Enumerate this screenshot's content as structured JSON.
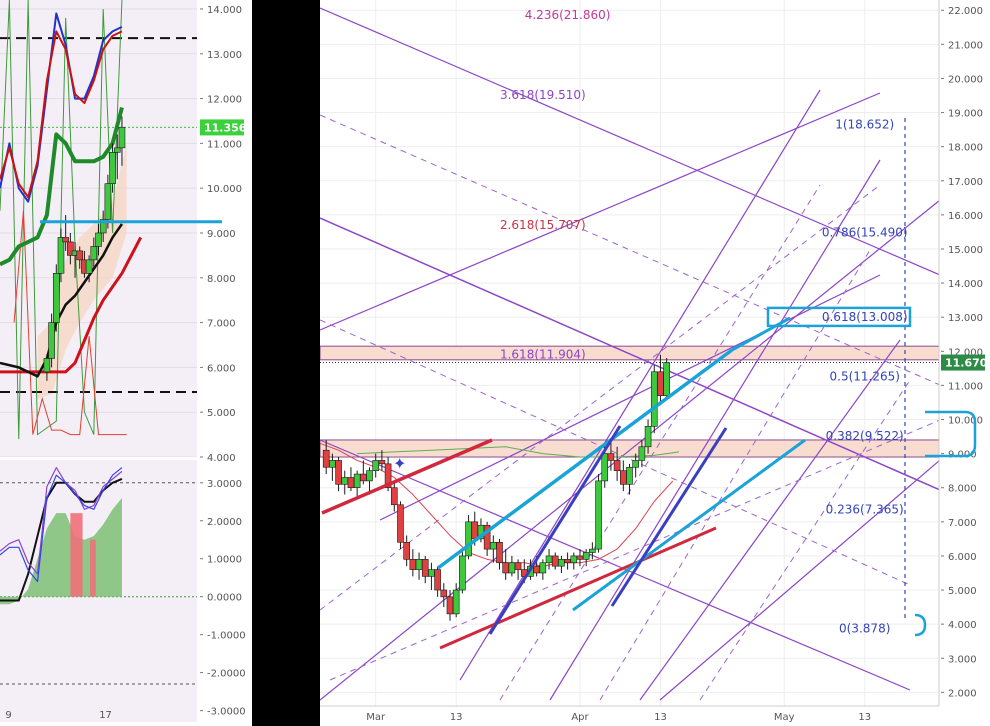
{
  "chart_data": [
    {
      "type": "line",
      "panel": "left-price",
      "ylim": [
        4.0,
        14.2
      ],
      "xlim": [
        0,
        21
      ],
      "y_ticks": [
        14.0,
        13.0,
        12.0,
        11.0,
        10.0,
        9.0,
        8.0,
        7.0,
        6.0,
        5.0,
        4.0
      ],
      "y_tick_labels": [
        "14.000",
        "13.000",
        "12.000",
        "11.000",
        "10.000",
        "9.000",
        "8.000",
        "7.000",
        "6.000",
        "5.000",
        "4.000"
      ],
      "x_ticks": [
        {
          "x": 1,
          "label": "9"
        },
        {
          "x": 11,
          "label": "17"
        }
      ],
      "last_price": 11.356,
      "last_price_label": "11.356",
      "dashed_levels": [
        13.35,
        5.45
      ],
      "cyan_level": 9.25,
      "candles": [
        {
          "x": 5.0,
          "o": 5.9,
          "h": 6.3,
          "l": 5.7,
          "c": 6.2
        },
        {
          "x": 5.5,
          "o": 6.2,
          "h": 7.2,
          "l": 6.0,
          "c": 7.0
        },
        {
          "x": 6.0,
          "o": 7.0,
          "h": 8.3,
          "l": 6.8,
          "c": 8.1
        },
        {
          "x": 6.5,
          "o": 8.1,
          "h": 9.1,
          "l": 7.9,
          "c": 8.9
        },
        {
          "x": 7.0,
          "o": 8.9,
          "h": 9.4,
          "l": 8.6,
          "c": 8.8
        },
        {
          "x": 7.5,
          "o": 8.8,
          "h": 9.0,
          "l": 8.3,
          "c": 8.5
        },
        {
          "x": 8.0,
          "o": 8.5,
          "h": 8.8,
          "l": 8.0,
          "c": 8.6
        },
        {
          "x": 8.5,
          "o": 8.6,
          "h": 8.7,
          "l": 8.2,
          "c": 8.4
        },
        {
          "x": 9.0,
          "o": 8.4,
          "h": 8.6,
          "l": 8.0,
          "c": 8.1
        },
        {
          "x": 9.5,
          "o": 8.1,
          "h": 8.5,
          "l": 7.9,
          "c": 8.4
        },
        {
          "x": 10.0,
          "o": 8.4,
          "h": 8.9,
          "l": 8.2,
          "c": 8.7
        },
        {
          "x": 10.5,
          "o": 8.7,
          "h": 9.2,
          "l": 8.5,
          "c": 9.0
        },
        {
          "x": 11.0,
          "o": 9.0,
          "h": 9.5,
          "l": 8.8,
          "c": 9.3
        },
        {
          "x": 11.5,
          "o": 9.3,
          "h": 10.3,
          "l": 9.1,
          "c": 10.1
        },
        {
          "x": 12.0,
          "o": 10.1,
          "h": 11.0,
          "l": 9.9,
          "c": 10.8
        },
        {
          "x": 12.5,
          "o": 10.8,
          "h": 11.2,
          "l": 10.2,
          "c": 10.9
        },
        {
          "x": 13.0,
          "o": 10.9,
          "h": 11.6,
          "l": 10.5,
          "c": 11.36
        }
      ],
      "series": [
        {
          "color": "#d0101a",
          "width": 3,
          "x": [
            0,
            1,
            2,
            3,
            4,
            5,
            6,
            7,
            8,
            9,
            10,
            11,
            12,
            13,
            14,
            15
          ],
          "y": [
            5.9,
            5.9,
            5.9,
            5.9,
            5.9,
            5.9,
            5.9,
            5.9,
            6.1,
            6.6,
            7.1,
            7.5,
            7.8,
            8.1,
            8.5,
            8.9
          ]
        },
        {
          "color": "#111111",
          "width": 2.5,
          "x": [
            0,
            2,
            4,
            5,
            6,
            7,
            8,
            9,
            10,
            11,
            12,
            13
          ],
          "y": [
            6.1,
            6.0,
            5.8,
            6.2,
            7.0,
            7.4,
            7.6,
            7.9,
            8.2,
            8.5,
            8.9,
            9.2
          ]
        },
        {
          "color": "#1e8a2a",
          "width": 4,
          "x": [
            0,
            1,
            2,
            3,
            4,
            5,
            6,
            7,
            8,
            9,
            10,
            11,
            12,
            13
          ],
          "y": [
            8.3,
            8.4,
            8.7,
            8.8,
            8.9,
            9.4,
            11.2,
            11.0,
            10.6,
            10.6,
            10.6,
            10.7,
            11.0,
            11.8
          ]
        },
        {
          "color": "#2233cc",
          "width": 2,
          "x": [
            0,
            1,
            2,
            3,
            4,
            5,
            6,
            7,
            8,
            9,
            10,
            11,
            12,
            13
          ],
          "y": [
            10.0,
            11.0,
            10.0,
            9.7,
            10.5,
            12.2,
            13.9,
            13.2,
            12.0,
            12.0,
            12.5,
            13.3,
            13.5,
            13.6
          ]
        },
        {
          "color": "#cc1111",
          "width": 2,
          "x": [
            0,
            1,
            2,
            3,
            4,
            5,
            6,
            7,
            8,
            9,
            10,
            11,
            12,
            13
          ],
          "y": [
            10.2,
            10.9,
            10.1,
            9.8,
            10.6,
            12.4,
            13.5,
            13.1,
            12.1,
            11.9,
            12.4,
            13.1,
            13.4,
            13.5
          ]
        }
      ]
    },
    {
      "type": "area",
      "panel": "left-oscillator",
      "ylim": [
        -3.3,
        3.6
      ],
      "y_ticks": [
        3.0,
        2.0,
        1.0,
        0.0,
        -1.0,
        -2.0,
        -3.0
      ],
      "y_tick_labels": [
        "3.0000",
        "2.0000",
        "1.0000",
        "0.0000",
        "-1.0000",
        "-2.0000",
        "-3.0000"
      ],
      "dashed_levels": [
        3.0,
        -2.3
      ],
      "area_x": [
        0,
        1,
        2,
        3,
        4,
        5,
        6,
        7,
        8,
        9,
        10,
        11,
        12,
        13
      ],
      "area_y": [
        -0.2,
        -0.2,
        -0.1,
        0.2,
        1.0,
        1.8,
        2.2,
        2.2,
        1.6,
        1.5,
        1.6,
        1.9,
        2.3,
        2.6
      ],
      "red_bars": [
        {
          "x0": 7.5,
          "x1": 8.8,
          "y": 2.2
        },
        {
          "x0": 9.6,
          "x1": 10.2,
          "y": 1.5
        }
      ],
      "series": [
        {
          "color": "#111111",
          "width": 2,
          "x": [
            0,
            2,
            3,
            4,
            5,
            6,
            7,
            8,
            9,
            10,
            11,
            12,
            13
          ],
          "y": [
            -0.1,
            -0.1,
            0.6,
            1.6,
            2.6,
            3.0,
            3.0,
            2.7,
            2.5,
            2.5,
            2.8,
            3.0,
            3.1
          ]
        },
        {
          "color": "#8d45c8",
          "width": 1.2,
          "x": [
            0,
            1,
            2,
            3,
            4,
            5,
            6,
            7,
            8,
            9,
            10,
            11,
            12,
            13
          ],
          "y": [
            1.2,
            1.4,
            1.5,
            0.9,
            0.6,
            2.9,
            3.4,
            3.0,
            2.8,
            2.3,
            2.4,
            2.9,
            3.1,
            3.3
          ]
        },
        {
          "color": "#3344ee",
          "width": 1.2,
          "x": [
            0,
            1,
            2,
            3,
            4,
            5,
            6,
            7,
            8,
            9,
            10,
            11,
            12,
            13
          ],
          "y": [
            1.1,
            1.3,
            1.3,
            0.7,
            0.4,
            2.6,
            3.2,
            3.0,
            2.7,
            2.4,
            2.3,
            2.8,
            3.2,
            3.4
          ]
        }
      ]
    },
    {
      "type": "line",
      "panel": "right-main",
      "ylim": [
        1.6,
        22.3
      ],
      "xlim": [
        0,
        100
      ],
      "y_ticks": [
        22,
        21,
        20,
        19,
        18,
        17,
        16,
        15,
        14,
        13,
        12,
        11,
        10,
        9,
        8,
        7,
        6,
        5,
        4,
        3,
        2
      ],
      "y_tick_labels": [
        "22.000",
        "21.000",
        "20.000",
        "19.000",
        "18.000",
        "17.000",
        "16.000",
        "15.000",
        "14.000",
        "13.000",
        "12.000",
        "11.000",
        "10.000",
        "9.000",
        "8.000",
        "7.000",
        "6.000",
        "5.000",
        "4.000",
        "3.000",
        "2.000"
      ],
      "x_ticks": [
        {
          "x": 9,
          "label": "Mar"
        },
        {
          "x": 22,
          "label": "13"
        },
        {
          "x": 42,
          "label": "Apr"
        },
        {
          "x": 55,
          "label": "13"
        },
        {
          "x": 75,
          "label": "May"
        },
        {
          "x": 88,
          "label": "13"
        }
      ],
      "last_price": 11.67,
      "last_price_label": "11.670",
      "fib_levels": [
        {
          "value": 21.86,
          "label": "4.236(21.860)",
          "x": 40,
          "color": "#c0399a"
        },
        {
          "value": 19.51,
          "label": "3.618(19.510)",
          "x": 36,
          "color": "#8d45c8"
        },
        {
          "value": 18.652,
          "label": "1(18.652)",
          "x": 88,
          "color": "#3344bb"
        },
        {
          "value": 15.707,
          "label": "2.618(15.707)",
          "x": 36,
          "color": "#cc3344"
        },
        {
          "value": 15.49,
          "label": "0.786(15.490)",
          "x": 88,
          "color": "#3344bb"
        },
        {
          "value": 13.008,
          "label": "0.618(13.008)",
          "x": 88,
          "color": "#3344bb"
        },
        {
          "value": 11.904,
          "label": "1.618(11.904)",
          "x": 36,
          "color": "#8d45c8"
        },
        {
          "value": 11.265,
          "label": "0.5(11.265)",
          "x": 88,
          "color": "#3344bb"
        },
        {
          "value": 9.522,
          "label": "0.382(9.522)",
          "x": 88,
          "color": "#3344bb"
        },
        {
          "value": 7.365,
          "label": "0.236(7.365)",
          "x": 88,
          "color": "#3344bb"
        },
        {
          "value": 3.878,
          "label": "0(3.878)",
          "x": 88,
          "color": "#3344bb"
        }
      ],
      "zones": [
        [
          11.75,
          12.15
        ],
        [
          8.9,
          9.4
        ]
      ],
      "candles": [
        {
          "x": 1.0,
          "o": 9.1,
          "h": 9.4,
          "l": 8.4,
          "c": 8.6
        },
        {
          "x": 2.0,
          "o": 8.6,
          "h": 9.0,
          "l": 8.2,
          "c": 8.8
        },
        {
          "x": 3.0,
          "o": 8.8,
          "h": 8.9,
          "l": 7.9,
          "c": 8.1
        },
        {
          "x": 4.0,
          "o": 8.1,
          "h": 8.5,
          "l": 7.8,
          "c": 8.3
        },
        {
          "x": 5.0,
          "o": 8.3,
          "h": 8.6,
          "l": 7.9,
          "c": 8.0
        },
        {
          "x": 6.0,
          "o": 8.0,
          "h": 8.5,
          "l": 7.7,
          "c": 8.4
        },
        {
          "x": 7.0,
          "o": 8.4,
          "h": 8.8,
          "l": 8.1,
          "c": 8.2
        },
        {
          "x": 8.0,
          "o": 8.2,
          "h": 8.6,
          "l": 7.8,
          "c": 8.5
        },
        {
          "x": 9.0,
          "o": 8.5,
          "h": 9.0,
          "l": 8.3,
          "c": 8.8
        },
        {
          "x": 10.0,
          "o": 8.8,
          "h": 9.1,
          "l": 8.5,
          "c": 8.7
        },
        {
          "x": 11.0,
          "o": 8.7,
          "h": 8.9,
          "l": 7.9,
          "c": 8.0
        },
        {
          "x": 12.0,
          "o": 8.0,
          "h": 8.2,
          "l": 7.3,
          "c": 7.5
        },
        {
          "x": 13.0,
          "o": 7.5,
          "h": 7.6,
          "l": 6.2,
          "c": 6.4
        },
        {
          "x": 14.0,
          "o": 6.4,
          "h": 6.6,
          "l": 5.7,
          "c": 5.9
        },
        {
          "x": 15.0,
          "o": 5.9,
          "h": 6.2,
          "l": 5.4,
          "c": 5.6
        },
        {
          "x": 16.0,
          "o": 5.6,
          "h": 6.1,
          "l": 5.3,
          "c": 5.9
        },
        {
          "x": 17.0,
          "o": 5.9,
          "h": 6.0,
          "l": 5.2,
          "c": 5.4
        },
        {
          "x": 18.0,
          "o": 5.4,
          "h": 5.8,
          "l": 5.0,
          "c": 5.6
        },
        {
          "x": 19.0,
          "o": 5.6,
          "h": 5.7,
          "l": 4.8,
          "c": 5.0
        },
        {
          "x": 20.0,
          "o": 5.0,
          "h": 5.2,
          "l": 4.5,
          "c": 4.8
        },
        {
          "x": 21.0,
          "o": 4.8,
          "h": 5.0,
          "l": 4.1,
          "c": 4.3
        },
        {
          "x": 22.0,
          "o": 4.3,
          "h": 5.2,
          "l": 4.2,
          "c": 5.0
        },
        {
          "x": 23.0,
          "o": 5.0,
          "h": 6.2,
          "l": 4.9,
          "c": 6.0
        },
        {
          "x": 24.0,
          "o": 6.0,
          "h": 7.2,
          "l": 5.9,
          "c": 7.0
        },
        {
          "x": 25.0,
          "o": 7.0,
          "h": 7.3,
          "l": 6.3,
          "c": 6.5
        },
        {
          "x": 26.0,
          "o": 6.5,
          "h": 7.1,
          "l": 6.4,
          "c": 6.9
        },
        {
          "x": 27.0,
          "o": 6.9,
          "h": 7.0,
          "l": 6.0,
          "c": 6.2
        },
        {
          "x": 28.0,
          "o": 6.2,
          "h": 6.6,
          "l": 5.8,
          "c": 6.4
        },
        {
          "x": 29.0,
          "o": 6.4,
          "h": 6.5,
          "l": 5.6,
          "c": 5.8
        },
        {
          "x": 30.0,
          "o": 5.8,
          "h": 6.2,
          "l": 5.3,
          "c": 5.5
        },
        {
          "x": 31.0,
          "o": 5.5,
          "h": 6.0,
          "l": 5.4,
          "c": 5.8
        },
        {
          "x": 32.0,
          "o": 5.8,
          "h": 5.9,
          "l": 5.3,
          "c": 5.6
        },
        {
          "x": 33.0,
          "o": 5.6,
          "h": 5.9,
          "l": 5.2,
          "c": 5.4
        },
        {
          "x": 34.0,
          "o": 5.4,
          "h": 5.9,
          "l": 5.3,
          "c": 5.7
        },
        {
          "x": 35.0,
          "o": 5.7,
          "h": 6.0,
          "l": 5.4,
          "c": 5.5
        },
        {
          "x": 36.0,
          "o": 5.5,
          "h": 5.9,
          "l": 5.3,
          "c": 5.8
        },
        {
          "x": 37.0,
          "o": 5.8,
          "h": 6.2,
          "l": 5.6,
          "c": 6.0
        },
        {
          "x": 38.0,
          "o": 6.0,
          "h": 6.1,
          "l": 5.6,
          "c": 5.7
        },
        {
          "x": 39.0,
          "o": 5.7,
          "h": 6.0,
          "l": 5.5,
          "c": 5.9
        },
        {
          "x": 40.0,
          "o": 5.9,
          "h": 6.1,
          "l": 5.6,
          "c": 5.8
        },
        {
          "x": 41.0,
          "o": 5.8,
          "h": 6.1,
          "l": 5.6,
          "c": 6.0
        },
        {
          "x": 42.0,
          "o": 6.0,
          "h": 6.2,
          "l": 5.7,
          "c": 5.9
        },
        {
          "x": 43.0,
          "o": 5.9,
          "h": 6.2,
          "l": 5.7,
          "c": 6.1
        },
        {
          "x": 44.0,
          "o": 6.1,
          "h": 6.4,
          "l": 5.9,
          "c": 6.2
        },
        {
          "x": 45.0,
          "o": 6.2,
          "h": 8.4,
          "l": 6.1,
          "c": 8.2
        },
        {
          "x": 46.0,
          "o": 8.2,
          "h": 9.3,
          "l": 8.0,
          "c": 9.0
        },
        {
          "x": 47.0,
          "o": 9.0,
          "h": 9.4,
          "l": 8.5,
          "c": 8.8
        },
        {
          "x": 48.0,
          "o": 8.8,
          "h": 9.2,
          "l": 8.2,
          "c": 8.5
        },
        {
          "x": 49.0,
          "o": 8.5,
          "h": 8.8,
          "l": 7.9,
          "c": 8.1
        },
        {
          "x": 50.0,
          "o": 8.1,
          "h": 8.7,
          "l": 7.8,
          "c": 8.6
        },
        {
          "x": 51.0,
          "o": 8.6,
          "h": 9.0,
          "l": 8.3,
          "c": 8.8
        },
        {
          "x": 52.0,
          "o": 8.8,
          "h": 9.4,
          "l": 8.6,
          "c": 9.2
        },
        {
          "x": 53.0,
          "o": 9.2,
          "h": 10.0,
          "l": 9.0,
          "c": 9.8
        },
        {
          "x": 54.0,
          "o": 9.8,
          "h": 11.6,
          "l": 9.6,
          "c": 11.4
        },
        {
          "x": 55.0,
          "o": 11.4,
          "h": 11.9,
          "l": 10.5,
          "c": 10.7
        },
        {
          "x": 56.0,
          "o": 10.7,
          "h": 11.8,
          "l": 10.6,
          "c": 11.67
        }
      ],
      "series": [
        {
          "color": "#d94452",
          "width": 1,
          "x": [
            0,
            3,
            6,
            9,
            12,
            15,
            18,
            21,
            24,
            27,
            30,
            33,
            36,
            39,
            42,
            45,
            48,
            51,
            54,
            57
          ],
          "y": [
            9.3,
            9.1,
            8.8,
            8.6,
            8.3,
            7.8,
            7.2,
            6.6,
            6.1,
            5.9,
            5.8,
            5.8,
            5.7,
            5.8,
            5.8,
            5.9,
            6.2,
            6.8,
            7.6,
            8.2
          ]
        },
        {
          "color": "#5fae53",
          "width": 1,
          "x": [
            6,
            12,
            18,
            24,
            30,
            36,
            42,
            48,
            54,
            58
          ],
          "y": [
            9.0,
            9.05,
            9.1,
            9.15,
            9.2,
            9.0,
            8.9,
            8.9,
            8.95,
            9.05
          ]
        }
      ]
    }
  ]
}
